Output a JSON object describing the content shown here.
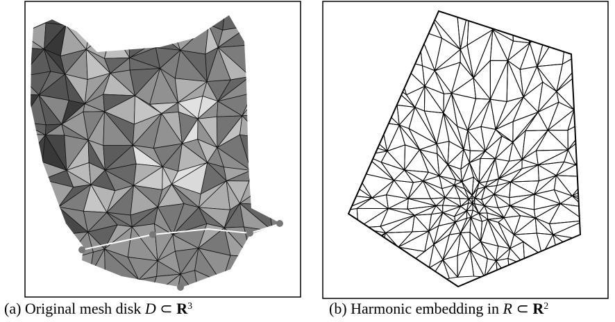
{
  "captions": [
    {
      "text": "(a) Original mesh disk ",
      "var": "D",
      "rel": " ⊂ ",
      "set": "R",
      "exponent": "3"
    },
    {
      "text": "(b) Harmonic embedding in ",
      "var": "R",
      "rel": " ⊂ ",
      "set": "R",
      "exponent": "2"
    }
  ]
}
